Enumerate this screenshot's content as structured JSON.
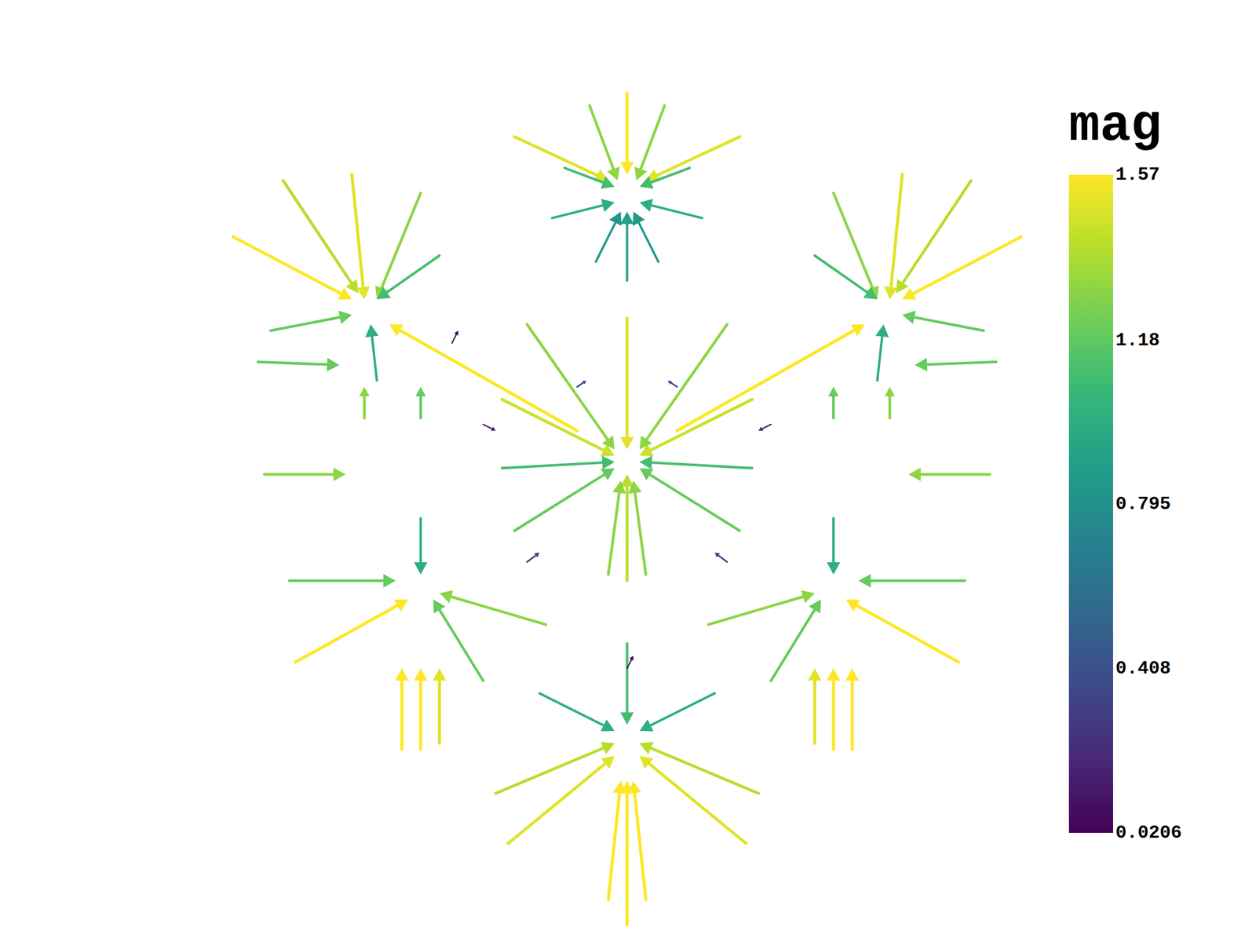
{
  "chart_data": {
    "type": "vector_field",
    "tick_labels": false,
    "grid": false,
    "xlim": [
      -6.8,
      6.8
    ],
    "ylim": [
      -7.2,
      6.5
    ],
    "colorbar": {
      "title": "mag",
      "range": [
        0.0206,
        1.57
      ],
      "ticks": [
        0.0206,
        0.408,
        0.795,
        1.18,
        1.57
      ]
    },
    "vectors": [
      {
        "x": 0,
        "y": 6.2,
        "u": 0,
        "v": -1.3,
        "mag": 1.57
      },
      {
        "x": -1.8,
        "y": 5.5,
        "u": 1.5,
        "v": -0.7,
        "mag": 1.5
      },
      {
        "x": 1.8,
        "y": 5.5,
        "u": -1.5,
        "v": -0.7,
        "mag": 1.5
      },
      {
        "x": -0.6,
        "y": 6.0,
        "u": 0.45,
        "v": -1.2,
        "mag": 1.3
      },
      {
        "x": 0.6,
        "y": 6.0,
        "u": -0.45,
        "v": -1.2,
        "mag": 1.3
      },
      {
        "x": -1.0,
        "y": 5.0,
        "u": 0.8,
        "v": -0.3,
        "mag": 1.1
      },
      {
        "x": 1.0,
        "y": 5.0,
        "u": -0.8,
        "v": -0.3,
        "mag": 1.1
      },
      {
        "x": -1.2,
        "y": 4.2,
        "u": 1.0,
        "v": 0.25,
        "mag": 1.0
      },
      {
        "x": 1.2,
        "y": 4.2,
        "u": -1.0,
        "v": 0.25,
        "mag": 1.0
      },
      {
        "x": 0,
        "y": 3.2,
        "u": 0,
        "v": 1.1,
        "mag": 0.9
      },
      {
        "x": -0.5,
        "y": 3.5,
        "u": 0.4,
        "v": 0.8,
        "mag": 0.85
      },
      {
        "x": 0.5,
        "y": 3.5,
        "u": -0.4,
        "v": 0.8,
        "mag": 0.85
      },
      {
        "x": -6.3,
        "y": 3.9,
        "u": 1.9,
        "v": -1.0,
        "mag": 1.57
      },
      {
        "x": -5.5,
        "y": 4.8,
        "u": 1.2,
        "v": -1.8,
        "mag": 1.4
      },
      {
        "x": -4.4,
        "y": 4.9,
        "u": 0.2,
        "v": -2.0,
        "mag": 1.5
      },
      {
        "x": -3.3,
        "y": 4.6,
        "u": -0.7,
        "v": -1.7,
        "mag": 1.3
      },
      {
        "x": -0.8,
        "y": 0.8,
        "u": -3.0,
        "v": 1.7,
        "mag": 1.57
      },
      {
        "x": -5.7,
        "y": 2.4,
        "u": 1.3,
        "v": 0.25,
        "mag": 1.2
      },
      {
        "x": -3.0,
        "y": 3.6,
        "u": -1.0,
        "v": -0.7,
        "mag": 1.1
      },
      {
        "x": -4.0,
        "y": 1.6,
        "u": -0.1,
        "v": 0.9,
        "mag": 1.0
      },
      {
        "x": 6.3,
        "y": 3.9,
        "u": -1.9,
        "v": -1.0,
        "mag": 1.57
      },
      {
        "x": 5.5,
        "y": 4.8,
        "u": -1.2,
        "v": -1.8,
        "mag": 1.4
      },
      {
        "x": 4.4,
        "y": 4.9,
        "u": -0.2,
        "v": -2.0,
        "mag": 1.5
      },
      {
        "x": 3.3,
        "y": 4.6,
        "u": 0.7,
        "v": -1.7,
        "mag": 1.3
      },
      {
        "x": 0.8,
        "y": 0.8,
        "u": 3.0,
        "v": 1.7,
        "mag": 1.57
      },
      {
        "x": 5.7,
        "y": 2.4,
        "u": -1.3,
        "v": 0.25,
        "mag": 1.2
      },
      {
        "x": 3.0,
        "y": 3.6,
        "u": 1.0,
        "v": -0.7,
        "mag": 1.1
      },
      {
        "x": 4.0,
        "y": 1.6,
        "u": 0.1,
        "v": 0.9,
        "mag": 1.0
      },
      {
        "x": 0,
        "y": 2.6,
        "u": 0,
        "v": -2.1,
        "mag": 1.5
      },
      {
        "x": -2.0,
        "y": 1.3,
        "u": 1.8,
        "v": -0.9,
        "mag": 1.45
      },
      {
        "x": 2.0,
        "y": 1.3,
        "u": -1.8,
        "v": -0.9,
        "mag": 1.45
      },
      {
        "x": -1.6,
        "y": 2.5,
        "u": 1.4,
        "v": -2.0,
        "mag": 1.3
      },
      {
        "x": 1.6,
        "y": 2.5,
        "u": -1.4,
        "v": -2.0,
        "mag": 1.3
      },
      {
        "x": 0,
        "y": -1.6,
        "u": 0,
        "v": 1.7,
        "mag": 1.4
      },
      {
        "x": -0.3,
        "y": -1.5,
        "u": 0.2,
        "v": 1.5,
        "mag": 1.3
      },
      {
        "x": 0.3,
        "y": -1.5,
        "u": -0.2,
        "v": 1.5,
        "mag": 1.3
      },
      {
        "x": -1.8,
        "y": -0.8,
        "u": 1.6,
        "v": 1.0,
        "mag": 1.2
      },
      {
        "x": 1.8,
        "y": -0.8,
        "u": -1.6,
        "v": 1.0,
        "mag": 1.2
      },
      {
        "x": -2.0,
        "y": 0.2,
        "u": 1.8,
        "v": 0.1,
        "mag": 1.1
      },
      {
        "x": 2.0,
        "y": 0.2,
        "u": -1.8,
        "v": 0.1,
        "mag": 1.1
      },
      {
        "x": -5.8,
        "y": 0.1,
        "u": 1.3,
        "v": 0,
        "mag": 1.3
      },
      {
        "x": -5.9,
        "y": 1.9,
        "u": 1.3,
        "v": -0.05,
        "mag": 1.2
      },
      {
        "x": 5.8,
        "y": 0.1,
        "u": -1.3,
        "v": 0,
        "mag": 1.3
      },
      {
        "x": 5.9,
        "y": 1.9,
        "u": -1.3,
        "v": -0.05,
        "mag": 1.2
      },
      {
        "x": -4.2,
        "y": 1.0,
        "u": 0,
        "v": 0.5,
        "mag": 1.3
      },
      {
        "x": -3.3,
        "y": 1.0,
        "u": 0,
        "v": 0.5,
        "mag": 1.2
      },
      {
        "x": 4.2,
        "y": 1.0,
        "u": 0,
        "v": 0.5,
        "mag": 1.3
      },
      {
        "x": 3.3,
        "y": 1.0,
        "u": 0,
        "v": 0.5,
        "mag": 1.2
      },
      {
        "x": -5.3,
        "y": -2.9,
        "u": 1.8,
        "v": 1.0,
        "mag": 1.57
      },
      {
        "x": -3.6,
        "y": -4.3,
        "u": 0,
        "v": 1.3,
        "mag": 1.57
      },
      {
        "x": -3.3,
        "y": -4.3,
        "u": 0,
        "v": 1.3,
        "mag": 1.57
      },
      {
        "x": -3.0,
        "y": -4.2,
        "u": 0,
        "v": 1.2,
        "mag": 1.5
      },
      {
        "x": -5.4,
        "y": -1.6,
        "u": 1.7,
        "v": 0,
        "mag": 1.2
      },
      {
        "x": -1.3,
        "y": -2.3,
        "u": -1.7,
        "v": 0.5,
        "mag": 1.3
      },
      {
        "x": -2.3,
        "y": -3.2,
        "u": -0.8,
        "v": 1.3,
        "mag": 1.2
      },
      {
        "x": -3.3,
        "y": -0.6,
        "u": 0,
        "v": -0.9,
        "mag": 1.0
      },
      {
        "x": 5.3,
        "y": -2.9,
        "u": -1.8,
        "v": 1.0,
        "mag": 1.57
      },
      {
        "x": 3.6,
        "y": -4.3,
        "u": 0,
        "v": 1.3,
        "mag": 1.57
      },
      {
        "x": 3.3,
        "y": -4.3,
        "u": 0,
        "v": 1.3,
        "mag": 1.57
      },
      {
        "x": 3.0,
        "y": -4.2,
        "u": 0,
        "v": 1.2,
        "mag": 1.5
      },
      {
        "x": 5.4,
        "y": -1.6,
        "u": -1.7,
        "v": 0,
        "mag": 1.2
      },
      {
        "x": 1.3,
        "y": -2.3,
        "u": 1.7,
        "v": 0.5,
        "mag": 1.3
      },
      {
        "x": 2.3,
        "y": -3.2,
        "u": 0.8,
        "v": 1.3,
        "mag": 1.2
      },
      {
        "x": 3.3,
        "y": -0.6,
        "u": 0,
        "v": -0.9,
        "mag": 1.0
      },
      {
        "x": 0,
        "y": -7.1,
        "u": 0,
        "v": 2.3,
        "mag": 1.57
      },
      {
        "x": -0.3,
        "y": -6.7,
        "u": 0.2,
        "v": 1.9,
        "mag": 1.57
      },
      {
        "x": 0.3,
        "y": -6.7,
        "u": -0.2,
        "v": 1.9,
        "mag": 1.57
      },
      {
        "x": -1.9,
        "y": -5.8,
        "u": 1.7,
        "v": 1.4,
        "mag": 1.5
      },
      {
        "x": 1.9,
        "y": -5.8,
        "u": -1.7,
        "v": 1.4,
        "mag": 1.5
      },
      {
        "x": -2.1,
        "y": -5.0,
        "u": 1.9,
        "v": 0.8,
        "mag": 1.4
      },
      {
        "x": 2.1,
        "y": -5.0,
        "u": -1.9,
        "v": 0.8,
        "mag": 1.4
      },
      {
        "x": -1.4,
        "y": -3.4,
        "u": 1.2,
        "v": -0.6,
        "mag": 1.0
      },
      {
        "x": 1.4,
        "y": -3.4,
        "u": -1.2,
        "v": -0.6,
        "mag": 1.0
      },
      {
        "x": 0,
        "y": -2.6,
        "u": 0,
        "v": -1.3,
        "mag": 1.1
      },
      {
        "x": -1.6,
        "y": -1.3,
        "u": 0.2,
        "v": 0.15,
        "mag": 0.3
      },
      {
        "x": 1.6,
        "y": -1.3,
        "u": -0.2,
        "v": 0.15,
        "mag": 0.3
      },
      {
        "x": -2.3,
        "y": 0.9,
        "u": 0.2,
        "v": -0.1,
        "mag": 0.15
      },
      {
        "x": 2.3,
        "y": 0.9,
        "u": -0.2,
        "v": -0.1,
        "mag": 0.15
      },
      {
        "x": 0,
        "y": -3.0,
        "u": 0.1,
        "v": 0.2,
        "mag": 0.05
      },
      {
        "x": -0.8,
        "y": 1.5,
        "u": 0.15,
        "v": 0.1,
        "mag": 0.4
      },
      {
        "x": 0.8,
        "y": 1.5,
        "u": -0.15,
        "v": 0.1,
        "mag": 0.4
      },
      {
        "x": -2.8,
        "y": 2.2,
        "u": 0.1,
        "v": 0.2,
        "mag": 0.0206
      }
    ]
  }
}
